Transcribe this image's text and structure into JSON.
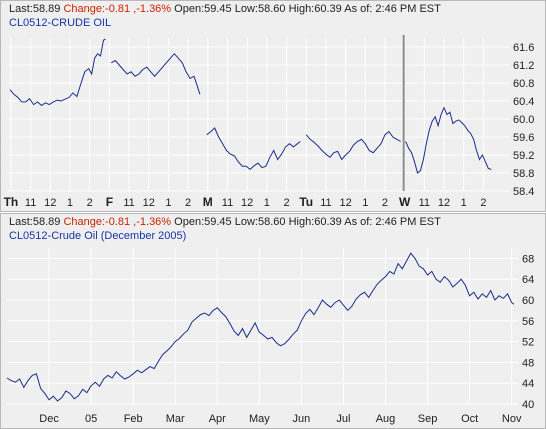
{
  "colors": {
    "series": "#1a2e8a",
    "change_negative": "#cc2200",
    "symbol_text": "#1a33a8",
    "panel_background": "#efefef",
    "grid": "#ffffff"
  },
  "panels": [
    {
      "quote": {
        "last_label": "Last:",
        "last_value": "58.89",
        "change_label": "Change:",
        "change_value": "-0.81 ,-1.36%",
        "open_label": "Open:",
        "open_value": "59.45",
        "low_label": "Low:",
        "low_value": "58.60",
        "high_label": "High:",
        "high_value": "60.39",
        "asof_label": "As of:",
        "asof_value": "2:46 PM EST"
      },
      "symbol": "CL0512-CRUDE OIL"
    },
    {
      "quote": {
        "last_label": "Last:",
        "last_value": "58.89",
        "change_label": "Change:",
        "change_value": "-0.81 ,-1.36%",
        "open_label": "Open:",
        "open_value": "59.45",
        "low_label": "Low:",
        "low_value": "58.60",
        "high_label": "High:",
        "high_value": "60.39",
        "asof_label": "As of:",
        "asof_value": "2:46 PM EST"
      },
      "symbol": "CL0512-Crude Oil (December 2005)"
    }
  ],
  "chart_data": [
    {
      "type": "line",
      "title": "CL0512-CRUDE OIL",
      "ylim": [
        58.4,
        61.8
      ],
      "y_ticks": [
        "61.6",
        "61.2",
        "60.8",
        "60.4",
        "60.0",
        "59.6",
        "59.2",
        "58.8",
        "58.4"
      ],
      "x_ticks": [
        {
          "label": "Th",
          "x": 0,
          "bold": true
        },
        {
          "label": "11",
          "x": 1
        },
        {
          "label": "12",
          "x": 2
        },
        {
          "label": "1",
          "x": 3
        },
        {
          "label": "2",
          "x": 4
        },
        {
          "label": "F",
          "x": 5,
          "bold": true
        },
        {
          "label": "11",
          "x": 6
        },
        {
          "label": "12",
          "x": 7
        },
        {
          "label": "1",
          "x": 8
        },
        {
          "label": "2",
          "x": 9
        },
        {
          "label": "M",
          "x": 10,
          "bold": true
        },
        {
          "label": "11",
          "x": 11
        },
        {
          "label": "12",
          "x": 12
        },
        {
          "label": "1",
          "x": 13
        },
        {
          "label": "2",
          "x": 14
        },
        {
          "label": "Tu",
          "x": 15,
          "bold": true
        },
        {
          "label": "11",
          "x": 16
        },
        {
          "label": "12",
          "x": 17
        },
        {
          "label": "1",
          "x": 18
        },
        {
          "label": "2",
          "x": 19
        },
        {
          "label": "W",
          "x": 20,
          "bold": true
        },
        {
          "label": "11",
          "x": 21
        },
        {
          "label": "12",
          "x": 22
        },
        {
          "label": "1",
          "x": 23
        },
        {
          "label": "2",
          "x": 24
        }
      ],
      "xlim": [
        -0.2,
        25.3
      ],
      "day_separator_x": 19.95,
      "segments": [
        [
          [
            -0.05,
            60.65
          ],
          [
            0.15,
            60.55
          ],
          [
            0.35,
            60.48
          ],
          [
            0.55,
            60.38
          ],
          [
            0.75,
            60.38
          ],
          [
            0.95,
            60.45
          ],
          [
            1.15,
            60.32
          ],
          [
            1.35,
            60.38
          ],
          [
            1.55,
            60.3
          ],
          [
            1.75,
            60.36
          ],
          [
            1.95,
            60.32
          ],
          [
            2.15,
            60.38
          ],
          [
            2.35,
            60.42
          ],
          [
            2.55,
            60.4
          ],
          [
            2.75,
            60.44
          ],
          [
            2.95,
            60.48
          ],
          [
            3.15,
            60.58
          ],
          [
            3.35,
            60.5
          ],
          [
            3.55,
            60.78
          ],
          [
            3.75,
            61.05
          ],
          [
            3.95,
            61.12
          ],
          [
            4.1,
            61.0
          ],
          [
            4.25,
            61.35
          ],
          [
            4.4,
            61.45
          ],
          [
            4.55,
            61.4
          ],
          [
            4.7,
            61.75
          ],
          [
            4.8,
            61.78
          ]
        ],
        [
          [
            5.1,
            61.25
          ],
          [
            5.3,
            61.3
          ],
          [
            5.5,
            61.2
          ],
          [
            5.7,
            61.1
          ],
          [
            5.9,
            61.0
          ],
          [
            6.1,
            61.05
          ],
          [
            6.3,
            60.95
          ],
          [
            6.5,
            61.0
          ],
          [
            6.7,
            61.1
          ],
          [
            6.9,
            61.15
          ],
          [
            7.1,
            61.05
          ],
          [
            7.3,
            60.95
          ],
          [
            7.5,
            61.05
          ],
          [
            7.7,
            61.15
          ],
          [
            7.9,
            61.25
          ],
          [
            8.1,
            61.35
          ],
          [
            8.3,
            61.45
          ],
          [
            8.5,
            61.35
          ],
          [
            8.7,
            61.25
          ],
          [
            8.9,
            61.05
          ],
          [
            9.1,
            60.9
          ],
          [
            9.3,
            60.95
          ],
          [
            9.45,
            60.75
          ],
          [
            9.6,
            60.55
          ]
        ],
        [
          [
            9.95,
            59.65
          ],
          [
            10.15,
            59.72
          ],
          [
            10.35,
            59.8
          ],
          [
            10.55,
            59.6
          ],
          [
            10.75,
            59.45
          ],
          [
            10.95,
            59.3
          ],
          [
            11.15,
            59.22
          ],
          [
            11.35,
            59.18
          ],
          [
            11.55,
            59.05
          ],
          [
            11.75,
            58.95
          ],
          [
            11.95,
            58.95
          ],
          [
            12.15,
            58.88
          ],
          [
            12.35,
            58.96
          ],
          [
            12.55,
            59.02
          ],
          [
            12.75,
            58.92
          ],
          [
            12.95,
            58.95
          ],
          [
            13.15,
            59.15
          ],
          [
            13.35,
            59.3
          ],
          [
            13.55,
            59.1
          ],
          [
            13.75,
            59.22
          ],
          [
            13.95,
            59.38
          ],
          [
            14.15,
            59.45
          ],
          [
            14.35,
            59.38
          ],
          [
            14.55,
            59.45
          ],
          [
            14.7,
            59.5
          ]
        ],
        [
          [
            15.0,
            59.65
          ],
          [
            15.2,
            59.55
          ],
          [
            15.4,
            59.48
          ],
          [
            15.6,
            59.4
          ],
          [
            15.8,
            59.3
          ],
          [
            16.0,
            59.22
          ],
          [
            16.2,
            59.15
          ],
          [
            16.4,
            59.25
          ],
          [
            16.6,
            59.28
          ],
          [
            16.8,
            59.1
          ],
          [
            17.0,
            59.2
          ],
          [
            17.2,
            59.28
          ],
          [
            17.4,
            59.42
          ],
          [
            17.6,
            59.5
          ],
          [
            17.8,
            59.55
          ],
          [
            18.0,
            59.45
          ],
          [
            18.2,
            59.3
          ],
          [
            18.4,
            59.25
          ],
          [
            18.6,
            59.35
          ],
          [
            18.8,
            59.45
          ],
          [
            19.0,
            59.65
          ],
          [
            19.2,
            59.72
          ],
          [
            19.4,
            59.6
          ],
          [
            19.6,
            59.55
          ],
          [
            19.8,
            59.5
          ]
        ],
        [
          [
            20.05,
            59.5
          ],
          [
            20.2,
            59.35
          ],
          [
            20.35,
            59.25
          ],
          [
            20.5,
            59.05
          ],
          [
            20.65,
            58.8
          ],
          [
            20.8,
            58.85
          ],
          [
            20.95,
            59.1
          ],
          [
            21.1,
            59.45
          ],
          [
            21.25,
            59.75
          ],
          [
            21.4,
            59.95
          ],
          [
            21.55,
            60.05
          ],
          [
            21.7,
            59.85
          ],
          [
            21.85,
            60.1
          ],
          [
            22.0,
            60.25
          ],
          [
            22.15,
            60.1
          ],
          [
            22.3,
            60.15
          ],
          [
            22.45,
            59.9
          ],
          [
            22.6,
            59.95
          ],
          [
            22.75,
            59.98
          ],
          [
            22.9,
            59.92
          ],
          [
            23.05,
            59.85
          ],
          [
            23.2,
            59.75
          ],
          [
            23.35,
            59.68
          ],
          [
            23.5,
            59.55
          ],
          [
            23.65,
            59.3
          ],
          [
            23.8,
            59.1
          ],
          [
            23.95,
            59.2
          ],
          [
            24.1,
            59.05
          ],
          [
            24.25,
            58.9
          ],
          [
            24.4,
            58.88
          ]
        ]
      ]
    },
    {
      "type": "line",
      "title": "CL0512-Crude Oil (December 2005)",
      "ylim": [
        40,
        70
      ],
      "y_ticks": [
        "68",
        "64",
        "60",
        "56",
        "52",
        "48",
        "44",
        "40"
      ],
      "x_ticks": [
        {
          "label": "Dec",
          "x": 1
        },
        {
          "label": "05",
          "x": 2
        },
        {
          "label": "Feb",
          "x": 3
        },
        {
          "label": "Mar",
          "x": 4
        },
        {
          "label": "Apr",
          "x": 5
        },
        {
          "label": "May",
          "x": 6
        },
        {
          "label": "Jun",
          "x": 7
        },
        {
          "label": "Jul",
          "x": 8
        },
        {
          "label": "Aug",
          "x": 9
        },
        {
          "label": "Sep",
          "x": 10
        },
        {
          "label": "Oct",
          "x": 11
        },
        {
          "label": "Nov",
          "x": 12
        }
      ],
      "xlim": [
        0,
        12.15
      ],
      "segments": [
        [
          [
            0,
            45
          ],
          [
            0.1,
            44.5
          ],
          [
            0.2,
            44.2
          ],
          [
            0.3,
            44.8
          ],
          [
            0.4,
            43.2
          ],
          [
            0.5,
            44.5
          ],
          [
            0.6,
            45.5
          ],
          [
            0.7,
            45.8
          ],
          [
            0.8,
            43.0
          ],
          [
            0.9,
            42.0
          ],
          [
            1.0,
            40.8
          ],
          [
            1.1,
            41.5
          ],
          [
            1.2,
            40.6
          ],
          [
            1.3,
            41.2
          ],
          [
            1.4,
            42.5
          ],
          [
            1.5,
            42.0
          ],
          [
            1.6,
            41.0
          ],
          [
            1.7,
            41.6
          ],
          [
            1.8,
            42.8
          ],
          [
            1.9,
            42.2
          ],
          [
            2.0,
            43.5
          ],
          [
            2.1,
            44.2
          ],
          [
            2.2,
            43.4
          ],
          [
            2.3,
            44.8
          ],
          [
            2.4,
            45.5
          ],
          [
            2.5,
            45.0
          ],
          [
            2.6,
            46.2
          ],
          [
            2.7,
            45.4
          ],
          [
            2.8,
            44.8
          ],
          [
            2.9,
            45.2
          ],
          [
            3.0,
            45.8
          ],
          [
            3.1,
            46.5
          ],
          [
            3.2,
            46.0
          ],
          [
            3.3,
            46.6
          ],
          [
            3.4,
            47.2
          ],
          [
            3.5,
            46.8
          ],
          [
            3.6,
            48.2
          ],
          [
            3.7,
            49.5
          ],
          [
            3.8,
            50.2
          ],
          [
            3.9,
            51.0
          ],
          [
            4.0,
            52.0
          ],
          [
            4.1,
            52.6
          ],
          [
            4.2,
            53.5
          ],
          [
            4.3,
            54.2
          ],
          [
            4.4,
            55.8
          ],
          [
            4.5,
            56.5
          ],
          [
            4.6,
            57.2
          ],
          [
            4.7,
            57.5
          ],
          [
            4.8,
            57.0
          ],
          [
            4.9,
            58.0
          ],
          [
            5.0,
            58.5
          ],
          [
            5.1,
            57.6
          ],
          [
            5.2,
            56.8
          ],
          [
            5.3,
            55.5
          ],
          [
            5.4,
            54.0
          ],
          [
            5.5,
            53.2
          ],
          [
            5.6,
            54.5
          ],
          [
            5.7,
            52.8
          ],
          [
            5.8,
            54.2
          ],
          [
            5.9,
            55.6
          ],
          [
            6.0,
            53.8
          ],
          [
            6.1,
            53.2
          ],
          [
            6.2,
            52.5
          ],
          [
            6.3,
            52.8
          ],
          [
            6.4,
            51.8
          ],
          [
            6.5,
            51.2
          ],
          [
            6.6,
            51.6
          ],
          [
            6.7,
            52.4
          ],
          [
            6.8,
            53.4
          ],
          [
            6.9,
            54.2
          ],
          [
            7.0,
            56.0
          ],
          [
            7.1,
            57.4
          ],
          [
            7.2,
            58.2
          ],
          [
            7.3,
            57.2
          ],
          [
            7.4,
            58.5
          ],
          [
            7.5,
            60.0
          ],
          [
            7.6,
            59.2
          ],
          [
            7.7,
            58.6
          ],
          [
            7.8,
            59.5
          ],
          [
            7.9,
            60.0
          ],
          [
            8.0,
            59.0
          ],
          [
            8.1,
            58.0
          ],
          [
            8.2,
            58.8
          ],
          [
            8.3,
            60.2
          ],
          [
            8.4,
            61.0
          ],
          [
            8.5,
            61.5
          ],
          [
            8.6,
            60.5
          ],
          [
            8.7,
            61.8
          ],
          [
            8.8,
            63.0
          ],
          [
            8.9,
            63.8
          ],
          [
            9.0,
            64.5
          ],
          [
            9.1,
            65.5
          ],
          [
            9.2,
            65.0
          ],
          [
            9.3,
            67.0
          ],
          [
            9.4,
            66.0
          ],
          [
            9.5,
            67.5
          ],
          [
            9.6,
            69.0
          ],
          [
            9.7,
            68.0
          ],
          [
            9.8,
            66.5
          ],
          [
            9.9,
            66.0
          ],
          [
            10.0,
            64.8
          ],
          [
            10.1,
            65.5
          ],
          [
            10.2,
            64.0
          ],
          [
            10.3,
            63.4
          ],
          [
            10.4,
            64.5
          ],
          [
            10.5,
            63.8
          ],
          [
            10.6,
            62.5
          ],
          [
            10.7,
            63.2
          ],
          [
            10.8,
            64.0
          ],
          [
            10.9,
            62.8
          ],
          [
            11.0,
            60.8
          ],
          [
            11.1,
            61.5
          ],
          [
            11.2,
            60.2
          ],
          [
            11.3,
            61.2
          ],
          [
            11.4,
            60.5
          ],
          [
            11.5,
            61.8
          ],
          [
            11.6,
            60.0
          ],
          [
            11.7,
            60.8
          ],
          [
            11.8,
            60.3
          ],
          [
            11.9,
            61.2
          ],
          [
            12.0,
            59.5
          ],
          [
            12.05,
            59.2
          ]
        ]
      ]
    }
  ]
}
